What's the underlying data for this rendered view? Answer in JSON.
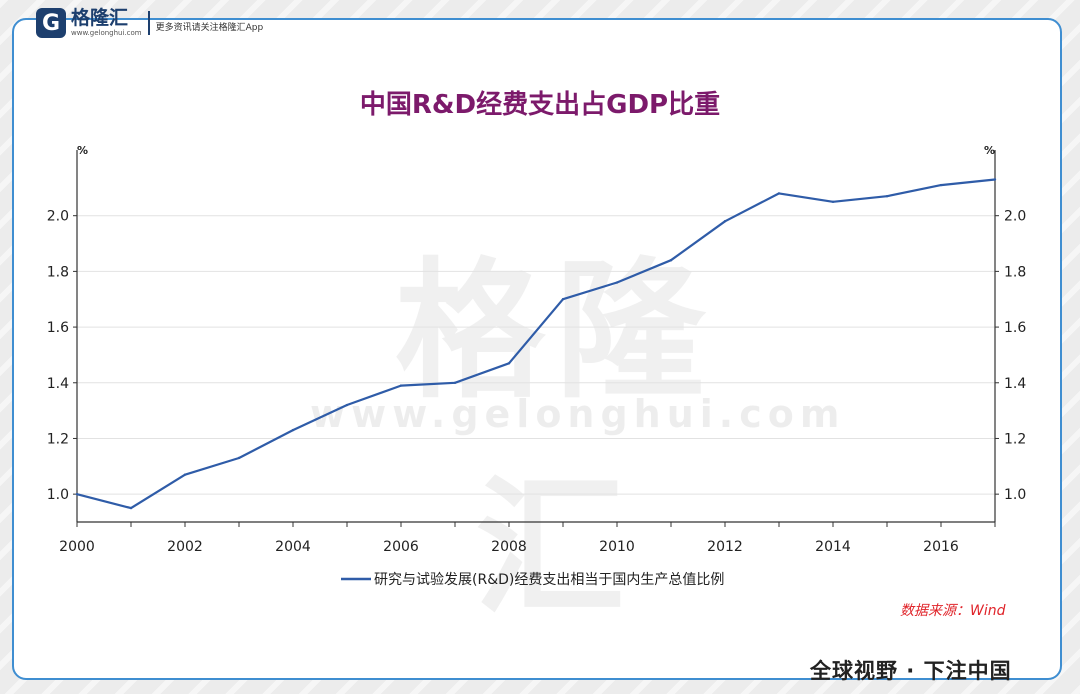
{
  "header": {
    "logo_letter": "G",
    "logo_name": "格隆汇",
    "logo_url": "www.gelonghui.com",
    "slogan": "更多资讯请关注格隆汇App"
  },
  "watermark": {
    "name": "格隆汇",
    "url": "www.gelonghui.com"
  },
  "source_note": "数据来源：Wind",
  "footer_slogan": "全球视野 · 下注中国",
  "colors": {
    "title": "#7c1a6b",
    "line": "#2f5ca8",
    "border": "#3f8ed1",
    "source": "#e0242a"
  },
  "chart_data": {
    "type": "line",
    "title": "中国R&D经费支出占GDP比重",
    "xlabel": "",
    "ylabel_left": "%",
    "ylabel_right": "%",
    "x": [
      2000,
      2001,
      2002,
      2003,
      2004,
      2005,
      2006,
      2007,
      2008,
      2009,
      2010,
      2011,
      2012,
      2013,
      2014,
      2015,
      2016,
      2017
    ],
    "x_ticks": [
      "2000",
      "2002",
      "2004",
      "2006",
      "2008",
      "2010",
      "2012",
      "2014",
      "2016"
    ],
    "y_ticks": [
      "1.0",
      "1.2",
      "1.4",
      "1.6",
      "1.8",
      "2.0"
    ],
    "xlim": [
      2000,
      2017
    ],
    "ylim": [
      0.9,
      2.2
    ],
    "grid": true,
    "legend_position": "bottom-center",
    "series": [
      {
        "name": "研究与试验发展(R&D)经费支出相当于国内生产总值比例",
        "values": [
          1.0,
          0.95,
          1.07,
          1.13,
          1.23,
          1.32,
          1.39,
          1.4,
          1.47,
          1.7,
          1.76,
          1.84,
          1.98,
          2.08,
          2.05,
          2.07,
          2.11,
          2.13
        ]
      }
    ]
  }
}
